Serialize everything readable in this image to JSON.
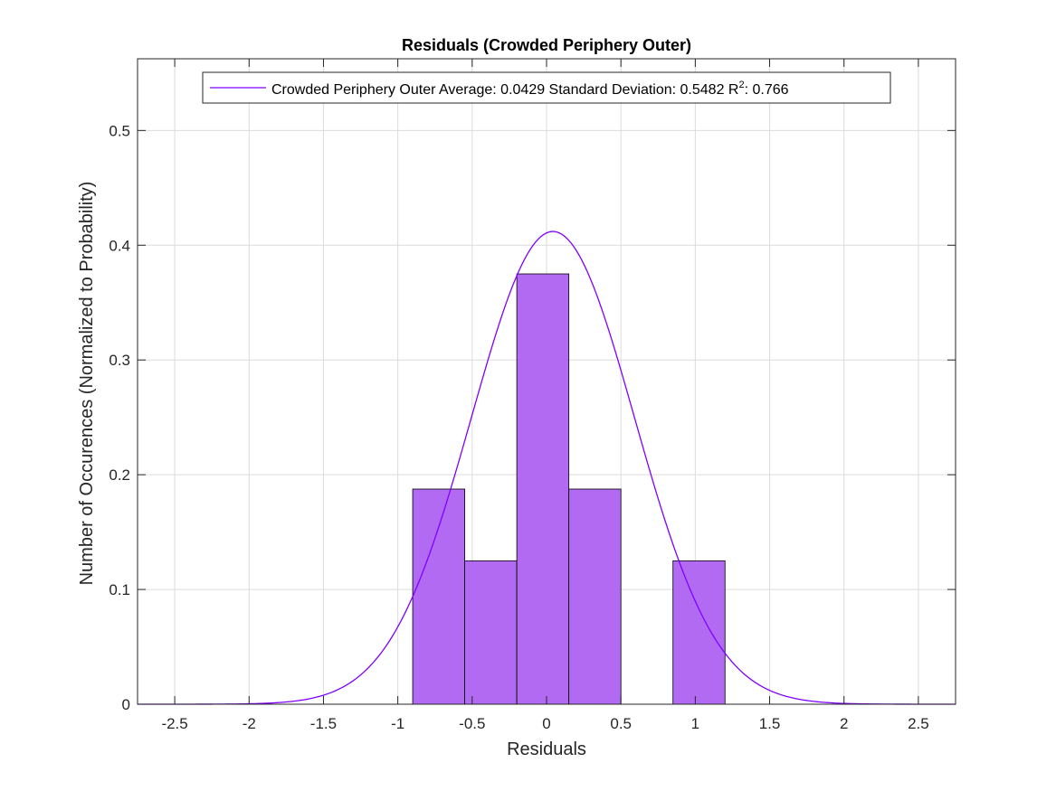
{
  "chart_data": {
    "type": "bar",
    "title": "Residuals (Crowded Periphery Outer)",
    "xlabel": "Residuals",
    "ylabel": "Number of Occurences (Normalized to Probability)",
    "xlim": [
      -2.75,
      2.75
    ],
    "ylim": [
      0,
      0.5625
    ],
    "xticks": [
      -2.5,
      -2,
      -1.5,
      -1,
      -0.5,
      0,
      0.5,
      1,
      1.5,
      2,
      2.5
    ],
    "xtick_labels": [
      "-2.5",
      "-2",
      "-1.5",
      "-1",
      "-0.5",
      "0",
      "0.5",
      "1",
      "1.5",
      "2",
      "2.5"
    ],
    "yticks": [
      0,
      0.1,
      0.2,
      0.3,
      0.4,
      0.5
    ],
    "ytick_labels": [
      "0",
      "0.1",
      "0.2",
      "0.3",
      "0.4",
      "0.5"
    ],
    "grid": true,
    "bar_color": "#b36af2",
    "curve_color": "#7f00ff",
    "bins": [
      {
        "from": -0.9,
        "to": -0.55,
        "value": 0.1875
      },
      {
        "from": -0.55,
        "to": -0.2,
        "value": 0.125
      },
      {
        "from": -0.2,
        "to": 0.15,
        "value": 0.375
      },
      {
        "from": 0.15,
        "to": 0.5,
        "value": 0.1875
      },
      {
        "from": 0.5,
        "to": 0.85,
        "value": 0.0
      },
      {
        "from": 0.85,
        "to": 1.2,
        "value": 0.125
      }
    ],
    "fit": {
      "mean": 0.0429,
      "std": 0.5482,
      "peak": 0.412
    },
    "legend": {
      "location": "top",
      "text_before": "Crowded Periphery Outer Average: 0.0429 Standard Deviation: 0.5482 R",
      "superscript": "2",
      "text_after": ": 0.766"
    }
  }
}
